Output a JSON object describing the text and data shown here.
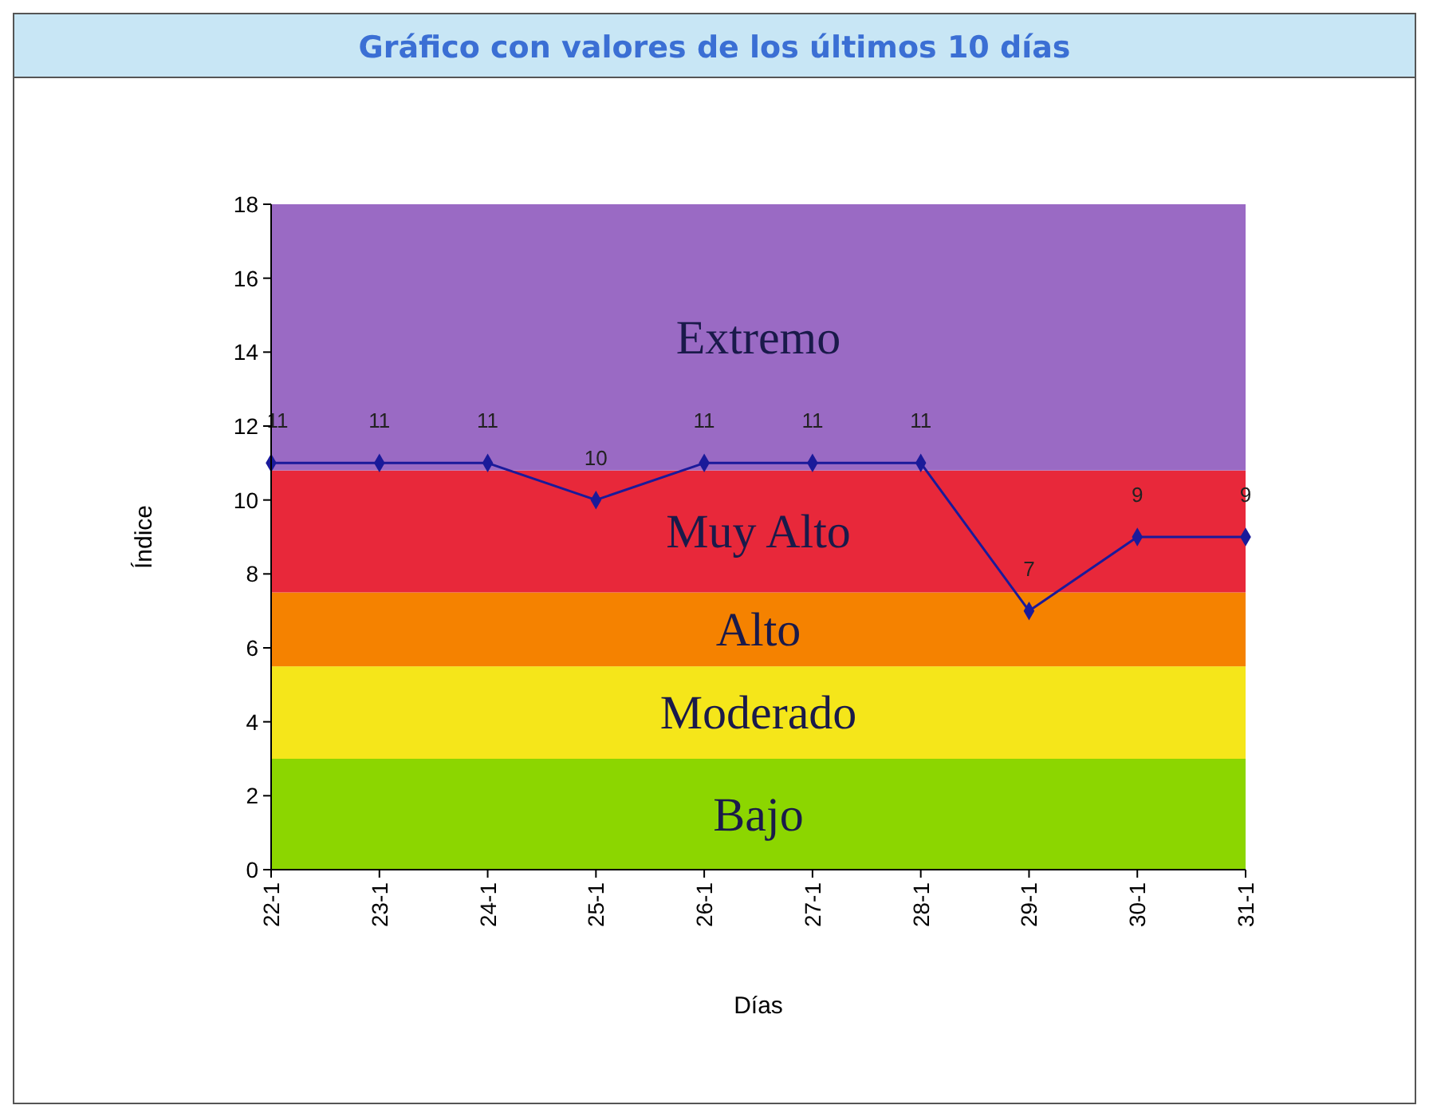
{
  "chart_data": {
    "type": "line",
    "title": "Gráfico con valores de los últimos 10 días",
    "xlabel": "Días",
    "ylabel": "Índice",
    "categories": [
      "22-1",
      "23-1",
      "24-1",
      "25-1",
      "26-1",
      "27-1",
      "28-1",
      "29-1",
      "30-1",
      "31-1"
    ],
    "series": [
      {
        "color": "#1a1a9a",
        "values": [
          11,
          11,
          11,
          10,
          11,
          11,
          11,
          7,
          9,
          9
        ]
      }
    ],
    "ylim": [
      0,
      18
    ],
    "yticks": [
      0,
      2,
      4,
      6,
      8,
      10,
      12,
      14,
      16,
      18
    ],
    "bands": [
      {
        "axis": "y",
        "from": 0,
        "to": 3,
        "label": "Bajo",
        "color": "#8cd600"
      },
      {
        "axis": "y",
        "from": 3,
        "to": 5.5,
        "label": "Moderado",
        "color": "#f5e61a"
      },
      {
        "axis": "y",
        "from": 5.5,
        "to": 7.5,
        "label": "Alto",
        "color": "#f58200"
      },
      {
        "axis": "y",
        "from": 7.5,
        "to": 10.8,
        "label": "Muy Alto",
        "color": "#e8283a"
      },
      {
        "axis": "y",
        "from": 10.8,
        "to": 18,
        "label": "Extremo",
        "color": "#9a6ac4"
      }
    ],
    "data_labels": true,
    "marker": "diamond"
  }
}
